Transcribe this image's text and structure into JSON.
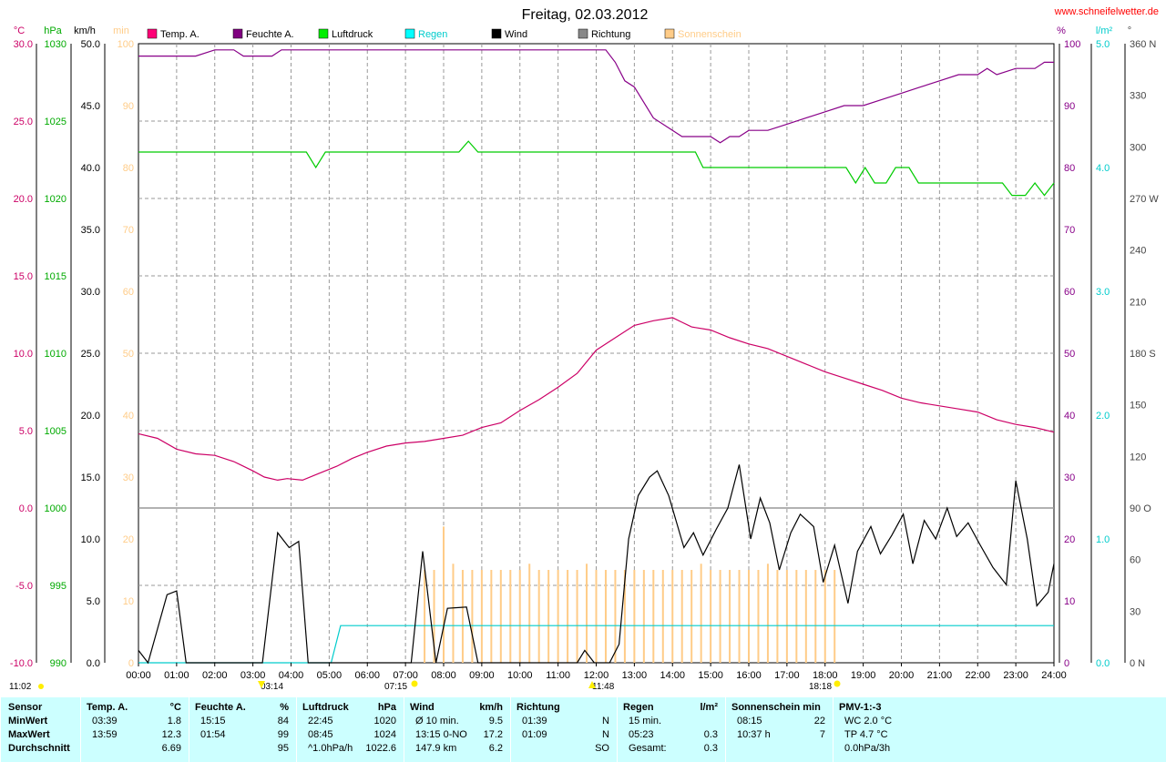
{
  "header": {
    "title": "Freitag, 02.03.2012",
    "site": "www.schneifelwetter.de"
  },
  "axes": {
    "temp": {
      "unit": "°C",
      "ticks": [
        "30.0",
        "25.0",
        "20.0",
        "15.0",
        "10.0",
        "5.0",
        "0.0",
        "-5.0",
        "-10.0"
      ],
      "color": "#cc0066"
    },
    "pressure": {
      "unit": "hPa",
      "ticks": [
        "1030",
        "1025",
        "1020",
        "1015",
        "1010",
        "1005",
        "1000",
        "995",
        "990"
      ],
      "color": "#00aa00"
    },
    "wind": {
      "unit": "km/h",
      "ticks": [
        "50.0",
        "45.0",
        "40.0",
        "35.0",
        "30.0",
        "25.0",
        "20.0",
        "15.0",
        "10.0",
        "5.0",
        "0.0"
      ],
      "color": "#000000"
    },
    "sun": {
      "unit": "min",
      "ticks": [
        "100",
        "90",
        "80",
        "70",
        "60",
        "50",
        "40",
        "30",
        "20",
        "10",
        "0"
      ],
      "color": "#ffcc88"
    },
    "humidity": {
      "unit": "%",
      "ticks": [
        "100",
        "90",
        "80",
        "70",
        "60",
        "50",
        "40",
        "30",
        "20",
        "10",
        "0"
      ],
      "color": "#880088"
    },
    "rain": {
      "unit": "l/m²",
      "ticks": [
        "5.0",
        "4.0",
        "3.0",
        "2.0",
        "1.0",
        "0.0"
      ],
      "color": "#00cccc"
    },
    "direction": {
      "unit": "°",
      "ticks": [
        "360 N",
        "330",
        "300",
        "270 W",
        "240",
        "210",
        "180 S",
        "150",
        "120",
        "90  O",
        "60",
        "30",
        "0  N"
      ],
      "color": "#444444"
    },
    "time_ticks": [
      "00:00",
      "01:00",
      "02:00",
      "03:00",
      "04:00",
      "05:00",
      "06:00",
      "07:00",
      "08:00",
      "09:00",
      "10:00",
      "11:00",
      "12:00",
      "13:00",
      "14:00",
      "15:00",
      "16:00",
      "17:00",
      "18:00",
      "19:00",
      "20:00",
      "21:00",
      "22:00",
      "23:00",
      "24:00"
    ]
  },
  "legend": [
    {
      "label": "Temp. A.",
      "color": "#ff0077",
      "icon": "square-icon"
    },
    {
      "label": "Feuchte A.",
      "color": "#800080",
      "icon": "square-icon"
    },
    {
      "label": "Luftdruck",
      "color": "#00ee00",
      "icon": "square-icon"
    },
    {
      "label": "Regen",
      "color": "#00ffff",
      "icon": "square-icon"
    },
    {
      "label": "Wind",
      "color": "#000000",
      "icon": "square-icon"
    },
    {
      "label": "Richtung",
      "color": "#888888",
      "icon": "square-icon"
    },
    {
      "label": "Sonnenschein",
      "color": "#ffcc88",
      "icon": "square-icon"
    }
  ],
  "markers": {
    "sunrise_label": "07:15",
    "sunset_label": "18:18",
    "moonset_label": "03:14",
    "moonrise_label": "11:48",
    "time_label": "11:02"
  },
  "chart_data": {
    "type": "line",
    "x_unit": "hours",
    "xlim": [
      0,
      24
    ],
    "series": [
      {
        "name": "Temp. A.",
        "unit": "°C",
        "ylim": [
          -10,
          30
        ],
        "color": "#cc0066",
        "x": [
          0,
          0.5,
          1,
          1.5,
          2,
          2.5,
          3,
          3.3,
          3.65,
          3.9,
          4.3,
          4.7,
          5.2,
          5.6,
          6,
          6.5,
          7,
          7.5,
          8,
          8.5,
          9,
          9.5,
          10,
          10.5,
          11,
          11.5,
          12,
          12.5,
          13,
          13.5,
          14,
          14.25,
          14.5,
          15,
          15.5,
          16,
          16.5,
          17,
          17.5,
          18,
          18.5,
          19,
          19.5,
          20,
          20.5,
          21,
          21.5,
          22,
          22.5,
          23,
          23.5,
          24
        ],
        "y": [
          4.8,
          4.5,
          3.8,
          3.5,
          3.4,
          3.0,
          2.4,
          2.0,
          1.8,
          1.9,
          1.8,
          2.2,
          2.7,
          3.2,
          3.6,
          4.0,
          4.2,
          4.3,
          4.5,
          4.7,
          5.2,
          5.5,
          6.3,
          7.0,
          7.8,
          8.7,
          10.2,
          11.0,
          11.8,
          12.1,
          12.3,
          12.0,
          11.7,
          11.5,
          11.0,
          10.6,
          10.3,
          9.8,
          9.3,
          8.8,
          8.4,
          8.0,
          7.6,
          7.1,
          6.8,
          6.6,
          6.4,
          6.2,
          5.7,
          5.4,
          5.2,
          4.9
        ]
      },
      {
        "name": "Feuchte A.",
        "unit": "%",
        "ylim": [
          0,
          100
        ],
        "color": "#880088",
        "x": [
          0,
          1.5,
          2,
          2.5,
          2.75,
          3.5,
          3.75,
          4,
          10,
          12,
          12.25,
          12.5,
          12.75,
          13,
          13.5,
          14,
          14.25,
          15,
          15.25,
          15.5,
          15.75,
          16,
          16.5,
          17,
          17.5,
          18,
          18.5,
          19,
          19.5,
          20,
          20.5,
          21,
          21.5,
          22,
          22.25,
          22.5,
          23,
          23.5,
          23.75,
          24
        ],
        "y": [
          98,
          98,
          99,
          99,
          98,
          98,
          99,
          99,
          99,
          99,
          99,
          97,
          94,
          93,
          88,
          86,
          85,
          85,
          84,
          85,
          85,
          86,
          86,
          87,
          88,
          89,
          90,
          90,
          91,
          92,
          93,
          94,
          95,
          95,
          96,
          95,
          96,
          96,
          97,
          97
        ]
      },
      {
        "name": "Luftdruck",
        "unit": "hPa",
        "ylim": [
          990,
          1030
        ],
        "color": "#00cc00",
        "x": [
          0,
          4.4,
          4.65,
          4.9,
          8.4,
          8.65,
          8.9,
          14.6,
          14.8,
          18.55,
          18.8,
          19.05,
          19.3,
          19.6,
          19.85,
          20.2,
          20.45,
          22.65,
          22.9,
          23.25,
          23.5,
          23.75,
          24
        ],
        "y": [
          1023.0,
          1023.0,
          1022.0,
          1023.0,
          1023.0,
          1023.7,
          1023.0,
          1023.0,
          1022.0,
          1022.0,
          1021.0,
          1022.0,
          1021.0,
          1021.0,
          1022.0,
          1022.0,
          1021.0,
          1021.0,
          1020.2,
          1020.2,
          1021.0,
          1020.2,
          1021.0
        ]
      },
      {
        "name": "Regen",
        "unit": "l/m²",
        "ylim": [
          0,
          5
        ],
        "color": "#00cccc",
        "x": [
          0,
          5.05,
          5.3,
          5.35,
          24
        ],
        "y": [
          0,
          0,
          0.3,
          0.3,
          0.3
        ]
      },
      {
        "name": "Wind",
        "unit": "km/h",
        "ylim": [
          0,
          50
        ],
        "color": "#000000",
        "x": [
          0,
          0.25,
          0.75,
          1,
          1.25,
          3.25,
          3.65,
          3.95,
          4.2,
          4.45,
          7.15,
          7.45,
          7.8,
          8.1,
          8.6,
          8.9,
          11.5,
          11.7,
          11.95,
          12.35,
          12.6,
          12.85,
          13.1,
          13.4,
          13.6,
          13.9,
          14.3,
          14.55,
          14.8,
          15.15,
          15.45,
          15.75,
          16.05,
          16.3,
          16.55,
          16.8,
          17.1,
          17.35,
          17.7,
          17.95,
          18.25,
          18.6,
          18.85,
          19.2,
          19.45,
          19.75,
          20.05,
          20.3,
          20.6,
          20.9,
          21.2,
          21.45,
          21.75,
          22.05,
          22.4,
          22.75,
          23,
          23.3,
          23.55,
          23.85,
          24
        ],
        "y": [
          1.0,
          0,
          5.5,
          5.8,
          0,
          0,
          10.5,
          9.3,
          9.8,
          0,
          0,
          9.0,
          0,
          4.4,
          4.5,
          0,
          0,
          1.0,
          0,
          0,
          1.5,
          10.0,
          13.5,
          15.0,
          15.5,
          13.5,
          9.3,
          10.5,
          8.7,
          10.8,
          12.5,
          16.0,
          10.0,
          13.3,
          11.3,
          7.5,
          10.5,
          12.0,
          11.0,
          6.5,
          9.5,
          4.8,
          9.0,
          11.0,
          8.8,
          10.3,
          12.0,
          8.0,
          11.5,
          10.0,
          12.5,
          10.2,
          11.3,
          9.6,
          7.7,
          6.3,
          14.7,
          10.0,
          4.6,
          5.7,
          8.0
        ]
      },
      {
        "name": "Sonnenschein",
        "unit": "min",
        "ylim": [
          0,
          100
        ],
        "color": "#ffcc88",
        "x": [
          7.5,
          7.75,
          8,
          8.25,
          8.5,
          8.75,
          9,
          9.25,
          9.5,
          9.75,
          10,
          10.25,
          10.5,
          10.75,
          11,
          11.25,
          11.5,
          11.75,
          12,
          12.25,
          12.5,
          12.75,
          13,
          13.25,
          13.5,
          13.75,
          14,
          14.25,
          14.5,
          14.75,
          15,
          15.25,
          15.5,
          15.75,
          16,
          16.25,
          16.5,
          16.75,
          17,
          17.25,
          17.5,
          17.75,
          18,
          18.25
        ],
        "y": [
          15,
          15,
          22,
          16,
          15,
          15,
          15,
          15,
          15,
          15,
          15,
          16,
          15,
          15,
          15,
          15,
          15,
          16,
          15,
          15,
          15,
          15,
          15,
          15,
          15,
          15,
          15,
          15,
          15,
          16,
          15,
          15,
          15,
          15,
          15,
          15,
          16,
          15,
          15,
          15,
          15,
          15,
          15,
          15
        ]
      }
    ]
  },
  "table": {
    "cols": [
      {
        "header": [
          "Sensor",
          ""
        ],
        "rows": [
          [
            "MinWert",
            ""
          ],
          [
            "MaxWert",
            ""
          ],
          [
            "Durchschnitt",
            ""
          ]
        ]
      },
      {
        "header": [
          "Temp. A.",
          "°C"
        ],
        "rows": [
          [
            "03:39",
            "1.8"
          ],
          [
            "13:59",
            "12.3"
          ],
          [
            "",
            "6.69"
          ]
        ]
      },
      {
        "header": [
          "Feuchte A.",
          "%"
        ],
        "rows": [
          [
            "15:15",
            "84"
          ],
          [
            "01:54",
            "99"
          ],
          [
            "",
            "95"
          ]
        ]
      },
      {
        "header": [
          "Luftdruck",
          "hPa"
        ],
        "rows": [
          [
            "22:45",
            "1020"
          ],
          [
            "08:45",
            "1024"
          ],
          [
            "^1.0hPa/h",
            "1022.6"
          ]
        ]
      },
      {
        "header": [
          "Wind",
          "km/h"
        ],
        "rows": [
          [
            "Ø 10 min.",
            "9.5"
          ],
          [
            "13:15     0-NO",
            "17.2"
          ],
          [
            "147.9 km",
            "6.2"
          ]
        ]
      },
      {
        "header": [
          "Richtung",
          ""
        ],
        "rows": [
          [
            "01:39",
            "N"
          ],
          [
            "01:09",
            "N"
          ],
          [
            "",
            "SO"
          ]
        ]
      },
      {
        "header": [
          "Regen",
          "l/m²"
        ],
        "rows": [
          [
            "15 min.",
            ""
          ],
          [
            "05:23",
            "0.3"
          ],
          [
            "Gesamt:",
            "0.3"
          ]
        ]
      },
      {
        "header": [
          "Sonnenschein min",
          ""
        ],
        "rows": [
          [
            "08:15",
            "22"
          ],
          [
            "10:37 h",
            "7"
          ],
          [
            "",
            ""
          ]
        ]
      },
      {
        "header": [
          "PMV-1:-3",
          ""
        ],
        "rows": [
          [
            "WC 2.0 °C",
            ""
          ],
          [
            "TP 4.7 °C",
            ""
          ],
          [
            "0.0hPa/3h",
            ""
          ]
        ]
      }
    ]
  }
}
